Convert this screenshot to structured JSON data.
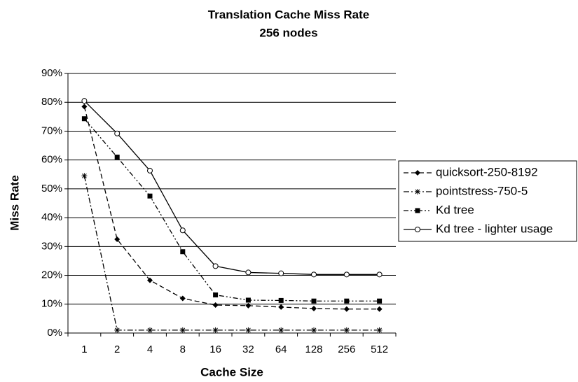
{
  "chart_data": {
    "type": "line",
    "title": "Translation Cache Miss Rate",
    "subtitle": "256 nodes",
    "x_label": "Cache Size",
    "y_label": "Miss Rate",
    "categories": [
      "1",
      "2",
      "4",
      "8",
      "16",
      "32",
      "64",
      "128",
      "256",
      "512"
    ],
    "series": [
      {
        "name": "quicksort-250-8192",
        "color": "#000000",
        "marker": "diamond",
        "line_style": "dashed",
        "values": [
          78.5,
          32.5,
          18.3,
          12,
          9.7,
          9.5,
          9,
          8.5,
          8.3,
          8.3
        ]
      },
      {
        "name": "pointstress-750-5",
        "color": "#000000",
        "marker": "star",
        "line_style": "dash-dot",
        "values": [
          54.5,
          1,
          1,
          1,
          1,
          1,
          1,
          1,
          1,
          1
        ]
      },
      {
        "name": "Kd tree",
        "color": "#000000",
        "marker": "square",
        "line_style": "dash-dot-dot",
        "values": [
          74.3,
          61,
          47.5,
          28.2,
          13.2,
          11.4,
          11.3,
          11.1,
          11.1,
          11.1
        ]
      },
      {
        "name": "Kd tree - lighter usage",
        "color": "#000000",
        "marker": "open-circle",
        "line_style": "solid",
        "values": [
          80.5,
          69.2,
          56.3,
          35.6,
          23.2,
          21,
          20.7,
          20.3,
          20.3,
          20.3
        ]
      }
    ],
    "ylim": [
      0,
      90
    ],
    "yticks": [
      {
        "value": 0,
        "label": "0%"
      },
      {
        "value": 10,
        "label": "10%"
      },
      {
        "value": 20,
        "label": "20%"
      },
      {
        "value": 30,
        "label": "30%"
      },
      {
        "value": 40,
        "label": "40%"
      },
      {
        "value": 50,
        "label": "50%"
      },
      {
        "value": 60,
        "label": "60%"
      },
      {
        "value": 70,
        "label": "70%"
      },
      {
        "value": 80,
        "label": "80%"
      },
      {
        "value": 90,
        "label": "90%"
      }
    ],
    "grid": true,
    "legend": "right"
  }
}
